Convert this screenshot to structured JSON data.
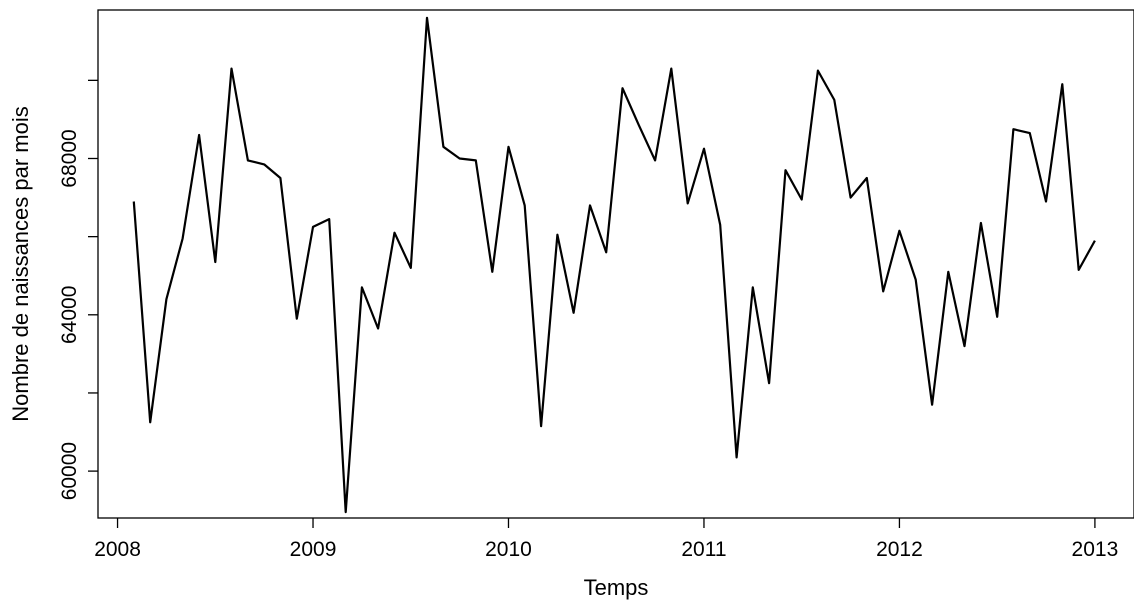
{
  "chart_data": {
    "type": "line",
    "title": "",
    "xlabel": "Temps",
    "ylabel": "Nombre de naissances par mois",
    "xlim": [
      2007.9,
      2013.2
    ],
    "ylim": [
      58800,
      71800
    ],
    "xticks": [
      2008,
      2009,
      2010,
      2011,
      2012,
      2013
    ],
    "xtick_labels": [
      "2008",
      "2009",
      "2010",
      "2011",
      "2012",
      "2013"
    ],
    "yticks": [
      60000,
      62000,
      64000,
      66000,
      68000,
      70000
    ],
    "ytick_labels": [
      "60000",
      "",
      "64000",
      "",
      "68000",
      ""
    ],
    "grid": false,
    "legend": "none",
    "line_color": "#000000",
    "series": [
      {
        "x": [
          2008.083,
          2008.167,
          2008.25,
          2008.333,
          2008.417,
          2008.5,
          2008.583,
          2008.667,
          2008.75,
          2008.833,
          2008.917,
          2009.0,
          2009.083,
          2009.167,
          2009.25,
          2009.333,
          2009.417,
          2009.5,
          2009.583,
          2009.667,
          2009.75,
          2009.833,
          2009.917,
          2010.0,
          2010.083,
          2010.167,
          2010.25,
          2010.333,
          2010.417,
          2010.5,
          2010.583,
          2010.667,
          2010.75,
          2010.833,
          2010.917,
          2011.0,
          2011.083,
          2011.167,
          2011.25,
          2011.333,
          2011.417,
          2011.5,
          2011.583,
          2011.667,
          2011.75,
          2011.833,
          2011.917,
          2012.0,
          2012.083,
          2012.167,
          2012.25,
          2012.333,
          2012.417,
          2012.5,
          2012.583,
          2012.667,
          2012.75,
          2012.833,
          2012.917,
          2013.0
        ],
        "values": [
          66900,
          61250,
          64400,
          65950,
          68600,
          65350,
          70300,
          67950,
          67850,
          67500,
          63900,
          66250,
          66450,
          58950,
          64700,
          63650,
          66100,
          65200,
          71600,
          68300,
          68000,
          67950,
          65100,
          68300,
          66800,
          61150,
          66050,
          64050,
          66800,
          65600,
          69800,
          68850,
          67950,
          70300,
          66850,
          68250,
          66300,
          60350,
          64700,
          62250,
          67700,
          66950,
          70250,
          69500,
          67000,
          67500,
          64600,
          66150,
          64900,
          61700,
          65100,
          63200,
          66350,
          63950,
          68750,
          68650,
          66900,
          69900,
          65150,
          65900
        ]
      }
    ]
  }
}
